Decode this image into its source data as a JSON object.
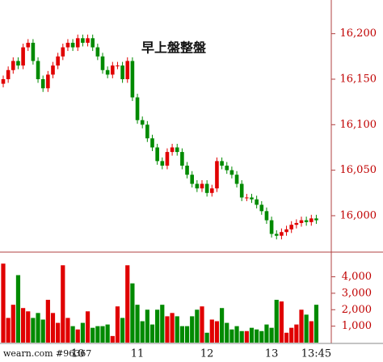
{
  "chart_data": {
    "type": "candlestick",
    "annotation": "早上盤整盤",
    "source_label": "wearn.com #96367",
    "categories": [
      null,
      null,
      null,
      null,
      null,
      null,
      null,
      null,
      null,
      null,
      null,
      null,
      null,
      null,
      null,
      "10",
      null,
      null,
      null,
      null,
      null,
      null,
      null,
      null,
      null,
      null,
      null,
      "11",
      null,
      null,
      null,
      null,
      null,
      null,
      null,
      null,
      null,
      null,
      null,
      null,
      null,
      "12",
      null,
      null,
      null,
      null,
      null,
      null,
      null,
      null,
      null,
      null,
      null,
      null,
      "13",
      null,
      null,
      null,
      null,
      null,
      null,
      null,
      null,
      "13:45"
    ],
    "open": [
      16145,
      16150,
      16160,
      16170,
      16165,
      16185,
      16190,
      16170,
      16150,
      16140,
      16155,
      16165,
      16175,
      16185,
      16190,
      16185,
      16195,
      16190,
      16195,
      16185,
      16175,
      16160,
      16155,
      16165,
      16165,
      16150,
      16170,
      16130,
      16105,
      16100,
      16085,
      16075,
      16060,
      16055,
      16070,
      16075,
      16070,
      16055,
      16045,
      16035,
      16030,
      16035,
      16025,
      16030,
      16060,
      16055,
      16050,
      16045,
      16035,
      16020,
      16020,
      16018,
      16012,
      16005,
      15995,
      15980,
      15978,
      15982,
      15985,
      15990,
      15992,
      15995,
      15993,
      15997
    ],
    "high": [
      16154,
      16164,
      16174,
      16174,
      16189,
      16194,
      16194,
      16174,
      16154,
      16159,
      16169,
      16179,
      16189,
      16194,
      16194,
      16199,
      16199,
      16199,
      16199,
      16189,
      16179,
      16164,
      16169,
      16169,
      16169,
      16174,
      16174,
      16134,
      16109,
      16104,
      16089,
      16079,
      16064,
      16074,
      16079,
      16079,
      16074,
      16059,
      16049,
      16039,
      16039,
      16039,
      16034,
      16064,
      16064,
      16059,
      16054,
      16049,
      16039,
      16024,
      16024,
      16022,
      16016,
      16009,
      15999,
      15984,
      15986,
      15989,
      15994,
      15996,
      15999,
      15999,
      16001,
      16001
    ],
    "low": [
      16141,
      16146,
      16156,
      16161,
      16161,
      16181,
      16166,
      16146,
      16136,
      16136,
      16151,
      16161,
      16171,
      16181,
      16181,
      16181,
      16186,
      16186,
      16181,
      16171,
      16156,
      16151,
      16151,
      16161,
      16146,
      16146,
      16126,
      16101,
      16096,
      16081,
      16071,
      16056,
      16051,
      16051,
      16066,
      16066,
      16051,
      16041,
      16031,
      16026,
      16026,
      16021,
      16021,
      16026,
      16051,
      16046,
      16041,
      16031,
      16016,
      16016,
      16014,
      16008,
      16001,
      15991,
      15976,
      15974,
      15974,
      15978,
      15981,
      15986,
      15988,
      15989,
      15989,
      15991
    ],
    "close": [
      16150,
      16160,
      16170,
      16165,
      16185,
      16190,
      16170,
      16150,
      16140,
      16155,
      16165,
      16175,
      16185,
      16190,
      16185,
      16195,
      16190,
      16195,
      16185,
      16175,
      16160,
      16155,
      16165,
      16165,
      16150,
      16170,
      16130,
      16105,
      16100,
      16085,
      16075,
      16060,
      16055,
      16070,
      16075,
      16070,
      16055,
      16045,
      16035,
      16030,
      16035,
      16025,
      16030,
      16060,
      16055,
      16050,
      16045,
      16035,
      16020,
      16020,
      16018,
      16012,
      16005,
      15995,
      15980,
      15978,
      15982,
      15985,
      15990,
      15992,
      15995,
      15993,
      15997,
      15995
    ],
    "volume": [
      4800,
      1500,
      2300,
      4100,
      2100,
      1900,
      1500,
      1800,
      1400,
      2600,
      1800,
      1200,
      4700,
      1500,
      1000,
      800,
      1200,
      1900,
      900,
      1000,
      1000,
      1100,
      400,
      2200,
      1500,
      4700,
      3600,
      2300,
      1300,
      2000,
      1100,
      2000,
      2300,
      1600,
      1800,
      1600,
      1000,
      1000,
      1600,
      2000,
      2200,
      600,
      1400,
      1300,
      2100,
      1200,
      800,
      1000,
      700,
      700,
      900,
      800,
      700,
      1100,
      900,
      2600,
      2500,
      600,
      900,
      1100,
      2000,
      1700,
      1300,
      2300
    ],
    "up_color": "#e00000",
    "down_color": "#008a00",
    "ylim": [
      15960,
      16237
    ],
    "yticks": [
      {
        "value": 16000,
        "label": "16,000"
      },
      {
        "value": 16050,
        "label": "16,050"
      },
      {
        "value": 16100,
        "label": "16,100"
      },
      {
        "value": 16150,
        "label": "16,150"
      },
      {
        "value": 16200,
        "label": "16,200"
      }
    ],
    "volume_ylim": [
      0,
      5500
    ],
    "volume_yticks": [
      {
        "value": 1000,
        "label": "1,000"
      },
      {
        "value": 2000,
        "label": "2,000"
      },
      {
        "value": 3000,
        "label": "3,000"
      },
      {
        "value": 4000,
        "label": "4,000"
      }
    ]
  }
}
